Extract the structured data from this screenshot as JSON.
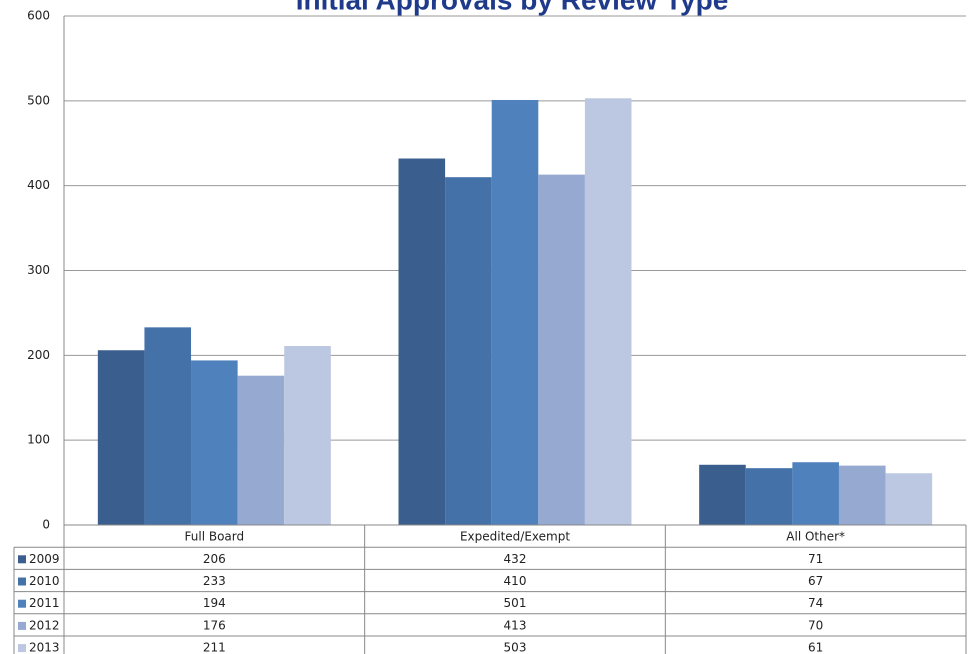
{
  "chart_data": {
    "type": "bar",
    "title": "Initial Approvals by Review Type",
    "categories": [
      "Full Board",
      "Expedited/Exempt",
      "All Other*"
    ],
    "series": [
      {
        "name": "2009",
        "color": "#3a5f8f",
        "values": [
          206,
          432,
          71
        ]
      },
      {
        "name": "2010",
        "color": "#4472a8",
        "values": [
          233,
          410,
          67
        ]
      },
      {
        "name": "2011",
        "color": "#4f81bd",
        "values": [
          194,
          501,
          74
        ]
      },
      {
        "name": "2012",
        "color": "#95a9d1",
        "values": [
          176,
          413,
          70
        ]
      },
      {
        "name": "2013",
        "color": "#bcc8e2",
        "values": [
          211,
          503,
          61
        ]
      }
    ],
    "ylim": [
      0,
      600
    ],
    "yticks": [
      0,
      100,
      200,
      300,
      400,
      500,
      600
    ],
    "grid": true
  }
}
